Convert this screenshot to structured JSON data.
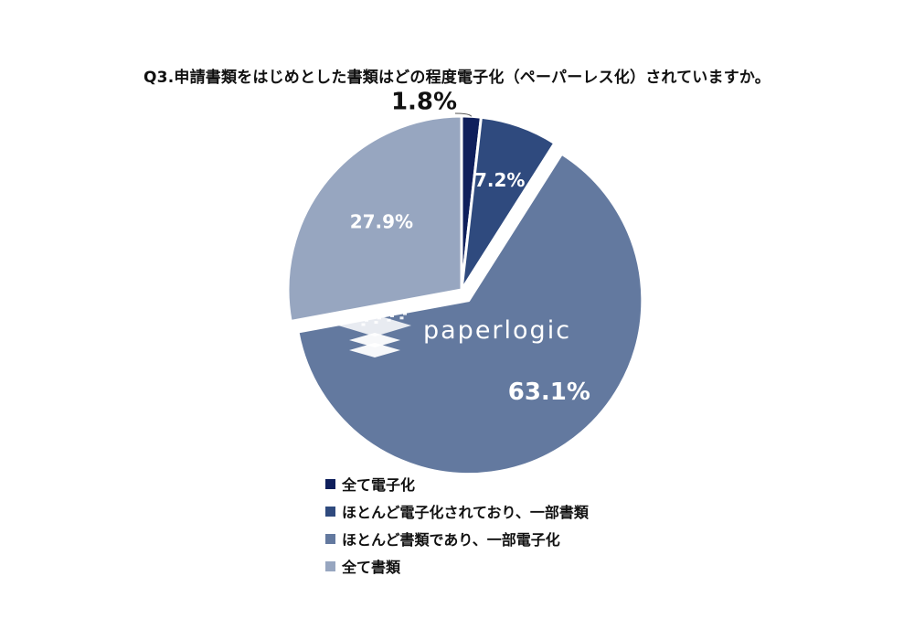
{
  "title": "Q3.申請書類をはじめとした書類はどの程度電子化（ペーパーレス化）されていますか。",
  "watermark": "paperlogic",
  "chart_data": {
    "type": "pie",
    "title": "Q3.申請書類をはじめとした書類はどの程度電子化（ペーパーレス化）されていますか。",
    "start_angle_deg": 0,
    "direction": "clockwise",
    "exploded": [
      "ほとんど書類であり、一部電子化"
    ],
    "legend_position": "bottom",
    "slices": [
      {
        "label": "全て電子化",
        "value": 1.8,
        "display": "1.8%",
        "color": "#0f1f5c"
      },
      {
        "label": "ほとんど電子化されており、一部書類",
        "value": 7.2,
        "display": "7.2%",
        "color": "#2f4a7e"
      },
      {
        "label": "ほとんど書類であり、一部電子化",
        "value": 63.1,
        "display": "63.1%",
        "color": "#63799f"
      },
      {
        "label": "全て書類",
        "value": 27.9,
        "display": "27.9%",
        "color": "#97a6c0"
      }
    ]
  }
}
